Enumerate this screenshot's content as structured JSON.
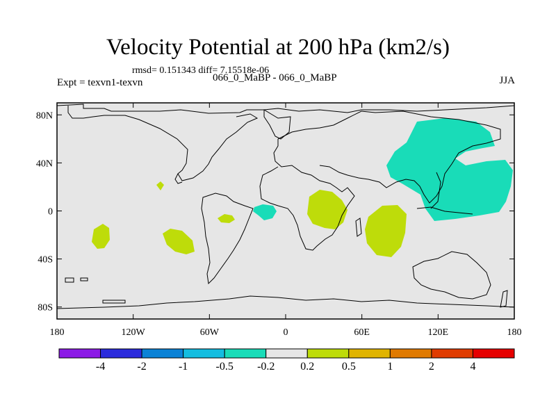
{
  "header": {
    "title": "Velocity Potential at 200 hPa (km2/s)",
    "stats": "rmsd= 0.151343 diff= 7.15518e-06",
    "expt": "Expt = texvn1-texvn",
    "case": "066_0_MaBP - 066_0_MaBP",
    "season": "JJA"
  },
  "chart_data": {
    "type": "contour-map",
    "title": "Velocity Potential at 200 hPa (km2/s)",
    "xlim": [
      -180,
      180
    ],
    "ylim": [
      -90,
      90
    ],
    "x_ticks": [
      {
        "value": -180,
        "label": "180"
      },
      {
        "value": -120,
        "label": "120W"
      },
      {
        "value": -60,
        "label": "60W"
      },
      {
        "value": 0,
        "label": "0"
      },
      {
        "value": 60,
        "label": "60E"
      },
      {
        "value": 120,
        "label": "120E"
      },
      {
        "value": 180,
        "label": "180"
      }
    ],
    "y_ticks": [
      {
        "value": 80,
        "label": "80N"
      },
      {
        "value": 40,
        "label": "40N"
      },
      {
        "value": 0,
        "label": "0"
      },
      {
        "value": -40,
        "label": "40S"
      },
      {
        "value": -80,
        "label": "80S"
      }
    ],
    "colorbar": {
      "labels": [
        "-4",
        "-2",
        "-1",
        "-0.5",
        "-0.2",
        "0.2",
        "0.5",
        "1",
        "2",
        "4"
      ],
      "colors": [
        "#8c1ae6",
        "#2b2bdc",
        "#0b82d6",
        "#14bde0",
        "#19dcb8",
        "#e6e6e6",
        "#bedc0a",
        "#e0b400",
        "#e07a00",
        "#e03c00",
        "#e60000"
      ]
    },
    "background_color": "#e6e6e6",
    "regions": [
      {
        "name": "negative-region-east-asia",
        "level": "-0.5 to -0.2",
        "color": "#19dcb8",
        "center_lon": 117,
        "center_lat": 28
      },
      {
        "name": "negative-region-gulf-of-guinea",
        "level": "-0.5 to -0.2",
        "color": "#19dcb8",
        "center_lon": -8,
        "center_lat": -5
      },
      {
        "name": "positive-region-central-africa",
        "level": "0.2 to 0.5",
        "color": "#bedc0a",
        "center_lon": 35,
        "center_lat": -4
      },
      {
        "name": "positive-region-indian-ocean",
        "level": "0.2 to 0.5",
        "color": "#bedc0a",
        "center_lon": 74,
        "center_lat": -20
      },
      {
        "name": "positive-region-south-pacific-west",
        "level": "0.2 to 0.5",
        "color": "#bedc0a",
        "center_lon": -150,
        "center_lat": -24
      },
      {
        "name": "positive-region-south-pacific-east",
        "level": "0.2 to 0.5",
        "color": "#bedc0a",
        "center_lon": -98,
        "center_lat": -29
      },
      {
        "name": "positive-region-south-america",
        "level": "0.2 to 0.5",
        "color": "#bedc0a",
        "center_lon": -47,
        "center_lat": -10
      },
      {
        "name": "positive-region-central-pacific",
        "level": "0.2 to 0.5",
        "color": "#bedc0a",
        "center_lon": -103,
        "center_lat": 15
      }
    ]
  }
}
